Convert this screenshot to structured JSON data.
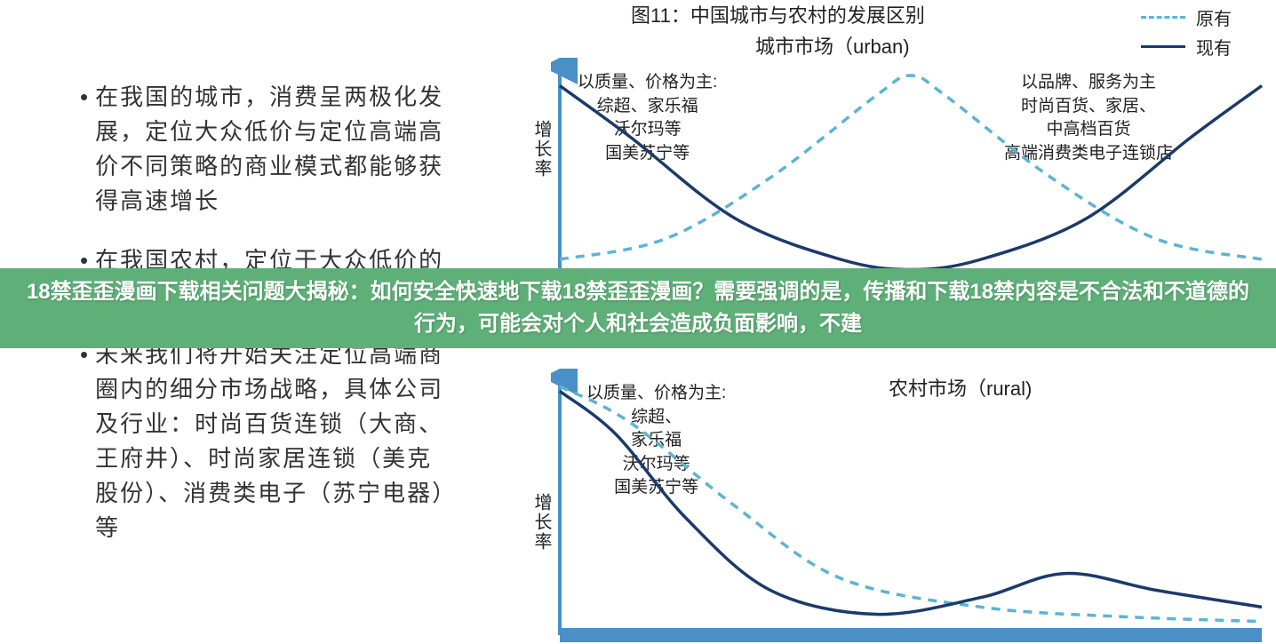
{
  "bullets": [
    "在我国的城市，消费呈两极化发展，定位大众低价与定位高端高价不同策略的商业模式都能够获得高速增长",
    "在我国农村，定位于大众低价的业态形式更能够迅速成长",
    "未来我们将开始关注定位高端商圈内的细分市场战略，具体公司及行业：时尚百货连锁（大商、王府井）、时尚家居连锁（美克股份）、消费类电子（苏宁电器）等"
  ],
  "figure": {
    "title": "图11：中国城市与农村的发展区别",
    "legend": {
      "dashed": "原有",
      "solid": "现有"
    },
    "colors": {
      "dashed": "#5db3d5",
      "solid": "#1b3a6b",
      "axis": "#4a8fc7",
      "banner": "#5eb078",
      "text": "#333333"
    },
    "urban": {
      "title": "城市市场（urban)",
      "ylabel": "增长率",
      "left_anno": "以质量、价格为主:\n综超、家乐福\n沃尔玛等\n国美苏宁等",
      "right_anno": "以品牌、服务为主\n时尚百货、家居、\n中高档百货\n高端消费类电子连锁店",
      "dashed_curve": {
        "type": "bell",
        "points": [
          [
            0,
            0.1
          ],
          [
            0.15,
            0.2
          ],
          [
            0.3,
            0.5
          ],
          [
            0.45,
            0.9
          ],
          [
            0.5,
            1.0
          ],
          [
            0.55,
            0.9
          ],
          [
            0.7,
            0.5
          ],
          [
            0.85,
            0.2
          ],
          [
            1,
            0.1
          ]
        ]
      },
      "solid_curve": {
        "type": "bimodal",
        "points": [
          [
            0,
            0.95
          ],
          [
            0.1,
            0.7
          ],
          [
            0.25,
            0.3
          ],
          [
            0.4,
            0.1
          ],
          [
            0.5,
            0.05
          ],
          [
            0.6,
            0.1
          ],
          [
            0.75,
            0.3
          ],
          [
            0.9,
            0.7
          ],
          [
            1,
            0.95
          ]
        ]
      }
    },
    "rural": {
      "title": "农村市场（rural)",
      "ylabel": "增长率",
      "left_anno": "以质量、价格为主:\n综超、\n家乐福\n沃尔玛等\n国美苏宁等",
      "dashed_curve": {
        "type": "decay",
        "points": [
          [
            0,
            1.0
          ],
          [
            0.1,
            0.85
          ],
          [
            0.25,
            0.5
          ],
          [
            0.4,
            0.2
          ],
          [
            0.6,
            0.08
          ],
          [
            0.8,
            0.04
          ],
          [
            1,
            0.02
          ]
        ]
      },
      "solid_curve": {
        "type": "decay_bump",
        "points": [
          [
            0,
            0.98
          ],
          [
            0.08,
            0.8
          ],
          [
            0.18,
            0.45
          ],
          [
            0.3,
            0.15
          ],
          [
            0.45,
            0.05
          ],
          [
            0.6,
            0.12
          ],
          [
            0.72,
            0.22
          ],
          [
            0.85,
            0.15
          ],
          [
            1,
            0.08
          ]
        ]
      }
    }
  },
  "banner_text": "18禁歪歪漫画下载相关问题大揭秘：如何安全快速地下载18禁歪歪漫画？需要强调的是，传播和下载18禁内容是不合法和不道德的行为，可能会对个人和社会造成负面影响，不建"
}
